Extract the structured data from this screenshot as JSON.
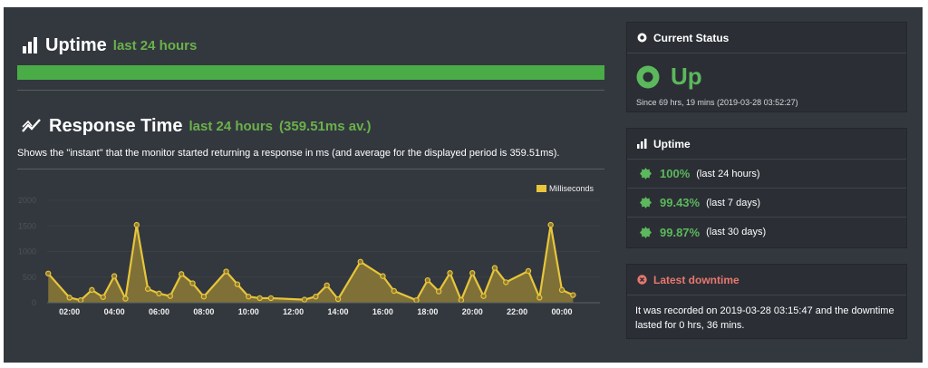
{
  "uptime_section": {
    "title": "Uptime",
    "period": "last 24 hours",
    "bar_fill_fraction": 1.0,
    "bar_color": "#4aac47"
  },
  "response_section": {
    "title": "Response Time",
    "period": "last 24 hours",
    "average": "(359.51ms av.)",
    "description": "Shows the \"instant\" that the monitor started returning a response in ms (and average for the displayed period is 359.51ms)."
  },
  "chart_data": {
    "type": "area",
    "legend": [
      "Milliseconds"
    ],
    "legend_placement": "top-right",
    "series_color": "#e8c53a",
    "ylim": [
      0,
      2000
    ],
    "y_ticks": [
      "0",
      "500",
      "1000",
      "1500",
      "2000"
    ],
    "x_range_hours": [
      1.0,
      25.7
    ],
    "x_tick_hours": [
      2,
      4,
      6,
      8,
      10,
      12,
      14,
      16,
      18,
      20,
      22,
      24
    ],
    "x_ticks": [
      "02:00",
      "04:00",
      "06:00",
      "08:00",
      "10:00",
      "12:00",
      "14:00",
      "16:00",
      "18:00",
      "20:00",
      "22:00",
      "00:00"
    ],
    "series": [
      {
        "name": "Milliseconds",
        "x_hours": [
          1.05,
          2.0,
          2.5,
          3.0,
          3.5,
          4.0,
          4.5,
          5.0,
          5.5,
          6.0,
          6.5,
          7.0,
          7.5,
          8.0,
          9.0,
          9.5,
          10.0,
          10.5,
          11.0,
          12.5,
          13.0,
          13.5,
          14.0,
          15.0,
          16.0,
          16.5,
          17.5,
          18.0,
          18.5,
          19.0,
          19.5,
          20.0,
          20.5,
          21.0,
          21.5,
          22.5,
          23.0,
          23.5,
          24.0,
          24.5
        ],
        "values": [
          570,
          100,
          50,
          250,
          110,
          520,
          80,
          1520,
          270,
          180,
          130,
          560,
          380,
          120,
          610,
          360,
          120,
          90,
          90,
          60,
          120,
          340,
          70,
          800,
          520,
          230,
          50,
          440,
          220,
          580,
          50,
          580,
          130,
          680,
          400,
          620,
          100,
          1520,
          250,
          150
        ]
      }
    ]
  },
  "current_status": {
    "header": "Current Status",
    "status": "Up",
    "since": "Since 69 hrs, 19 mins (2019-03-28 03:52:27)",
    "status_color": "#5cb85c"
  },
  "uptime_panel": {
    "header": "Uptime",
    "rows": [
      {
        "pct": "100%",
        "period": "(last 24 hours)"
      },
      {
        "pct": "99.43%",
        "period": "(last 7 days)"
      },
      {
        "pct": "99.87%",
        "period": "(last 30 days)"
      }
    ]
  },
  "latest_downtime": {
    "header": "Latest downtime",
    "text": "It was recorded on 2019-03-28 03:15:47 and the downtime lasted for 0 hrs, 36 mins.",
    "header_color": "#e8776f"
  }
}
